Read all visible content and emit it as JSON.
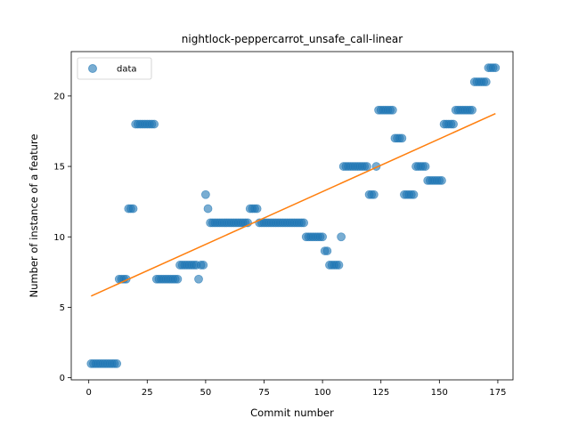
{
  "chart_data": {
    "type": "scatter",
    "title": "nightlock-peppercarrot_unsafe_call-linear",
    "xlabel": "Commit number",
    "ylabel": "Number of instance of a feature",
    "xlim": [
      -7.5,
      181.5
    ],
    "ylim": [
      -0.15,
      23.15
    ],
    "xticks": [
      0,
      25,
      50,
      75,
      100,
      125,
      150,
      175
    ],
    "yticks": [
      0,
      5,
      10,
      15,
      20
    ],
    "legend": {
      "position": "top-left",
      "entries": [
        "data"
      ]
    },
    "grid": false,
    "colors": {
      "scatter": "#1f77b4",
      "fit": "#ff7f0e"
    },
    "series": [
      {
        "name": "data",
        "kind": "scatter",
        "points": [
          [
            1,
            1
          ],
          [
            2,
            1
          ],
          [
            3,
            1
          ],
          [
            4,
            1
          ],
          [
            5,
            1
          ],
          [
            6,
            1
          ],
          [
            7,
            1
          ],
          [
            8,
            1
          ],
          [
            9,
            1
          ],
          [
            10,
            1
          ],
          [
            11,
            1
          ],
          [
            12,
            1
          ],
          [
            13,
            7
          ],
          [
            14,
            7
          ],
          [
            15,
            7
          ],
          [
            16,
            7
          ],
          [
            17,
            12
          ],
          [
            18,
            12
          ],
          [
            19,
            12
          ],
          [
            20,
            18
          ],
          [
            21,
            18
          ],
          [
            22,
            18
          ],
          [
            23,
            18
          ],
          [
            24,
            18
          ],
          [
            25,
            18
          ],
          [
            26,
            18
          ],
          [
            27,
            18
          ],
          [
            28,
            18
          ],
          [
            29,
            7
          ],
          [
            30,
            7
          ],
          [
            31,
            7
          ],
          [
            32,
            7
          ],
          [
            33,
            7
          ],
          [
            34,
            7
          ],
          [
            35,
            7
          ],
          [
            36,
            7
          ],
          [
            37,
            7
          ],
          [
            38,
            7
          ],
          [
            39,
            8
          ],
          [
            40,
            8
          ],
          [
            41,
            8
          ],
          [
            42,
            8
          ],
          [
            43,
            8
          ],
          [
            44,
            8
          ],
          [
            45,
            8
          ],
          [
            46,
            8
          ],
          [
            47,
            7
          ],
          [
            48,
            8
          ],
          [
            49,
            8
          ],
          [
            50,
            13
          ],
          [
            51,
            12
          ],
          [
            52,
            11
          ],
          [
            53,
            11
          ],
          [
            54,
            11
          ],
          [
            55,
            11
          ],
          [
            56,
            11
          ],
          [
            57,
            11
          ],
          [
            58,
            11
          ],
          [
            59,
            11
          ],
          [
            60,
            11
          ],
          [
            61,
            11
          ],
          [
            62,
            11
          ],
          [
            63,
            11
          ],
          [
            64,
            11
          ],
          [
            65,
            11
          ],
          [
            66,
            11
          ],
          [
            67,
            11
          ],
          [
            68,
            11
          ],
          [
            69,
            12
          ],
          [
            70,
            12
          ],
          [
            71,
            12
          ],
          [
            72,
            12
          ],
          [
            73,
            11
          ],
          [
            74,
            11
          ],
          [
            75,
            11
          ],
          [
            76,
            11
          ],
          [
            77,
            11
          ],
          [
            78,
            11
          ],
          [
            79,
            11
          ],
          [
            80,
            11
          ],
          [
            81,
            11
          ],
          [
            82,
            11
          ],
          [
            83,
            11
          ],
          [
            84,
            11
          ],
          [
            85,
            11
          ],
          [
            86,
            11
          ],
          [
            87,
            11
          ],
          [
            88,
            11
          ],
          [
            89,
            11
          ],
          [
            90,
            11
          ],
          [
            91,
            11
          ],
          [
            92,
            11
          ],
          [
            93,
            10
          ],
          [
            94,
            10
          ],
          [
            95,
            10
          ],
          [
            96,
            10
          ],
          [
            97,
            10
          ],
          [
            98,
            10
          ],
          [
            99,
            10
          ],
          [
            100,
            10
          ],
          [
            101,
            9
          ],
          [
            102,
            9
          ],
          [
            103,
            8
          ],
          [
            104,
            8
          ],
          [
            105,
            8
          ],
          [
            106,
            8
          ],
          [
            107,
            8
          ],
          [
            108,
            10
          ],
          [
            109,
            15
          ],
          [
            110,
            15
          ],
          [
            111,
            15
          ],
          [
            112,
            15
          ],
          [
            113,
            15
          ],
          [
            114,
            15
          ],
          [
            115,
            15
          ],
          [
            116,
            15
          ],
          [
            117,
            15
          ],
          [
            118,
            15
          ],
          [
            119,
            15
          ],
          [
            120,
            13
          ],
          [
            121,
            13
          ],
          [
            122,
            13
          ],
          [
            123,
            15
          ],
          [
            124,
            19
          ],
          [
            125,
            19
          ],
          [
            126,
            19
          ],
          [
            127,
            19
          ],
          [
            128,
            19
          ],
          [
            129,
            19
          ],
          [
            130,
            19
          ],
          [
            131,
            17
          ],
          [
            132,
            17
          ],
          [
            133,
            17
          ],
          [
            134,
            17
          ],
          [
            135,
            13
          ],
          [
            136,
            13
          ],
          [
            137,
            13
          ],
          [
            138,
            13
          ],
          [
            139,
            13
          ],
          [
            140,
            15
          ],
          [
            141,
            15
          ],
          [
            142,
            15
          ],
          [
            143,
            15
          ],
          [
            144,
            15
          ],
          [
            145,
            14
          ],
          [
            146,
            14
          ],
          [
            147,
            14
          ],
          [
            148,
            14
          ],
          [
            149,
            14
          ],
          [
            150,
            14
          ],
          [
            151,
            14
          ],
          [
            152,
            18
          ],
          [
            153,
            18
          ],
          [
            154,
            18
          ],
          [
            155,
            18
          ],
          [
            156,
            18
          ],
          [
            157,
            19
          ],
          [
            158,
            19
          ],
          [
            159,
            19
          ],
          [
            160,
            19
          ],
          [
            161,
            19
          ],
          [
            162,
            19
          ],
          [
            163,
            19
          ],
          [
            164,
            19
          ],
          [
            165,
            21
          ],
          [
            166,
            21
          ],
          [
            167,
            21
          ],
          [
            168,
            21
          ],
          [
            169,
            21
          ],
          [
            170,
            21
          ],
          [
            171,
            22
          ],
          [
            172,
            22
          ],
          [
            173,
            22
          ],
          [
            174,
            22
          ]
        ]
      },
      {
        "name": "",
        "kind": "line",
        "points": [
          [
            1,
            5.8
          ],
          [
            174,
            18.75
          ]
        ]
      }
    ]
  }
}
